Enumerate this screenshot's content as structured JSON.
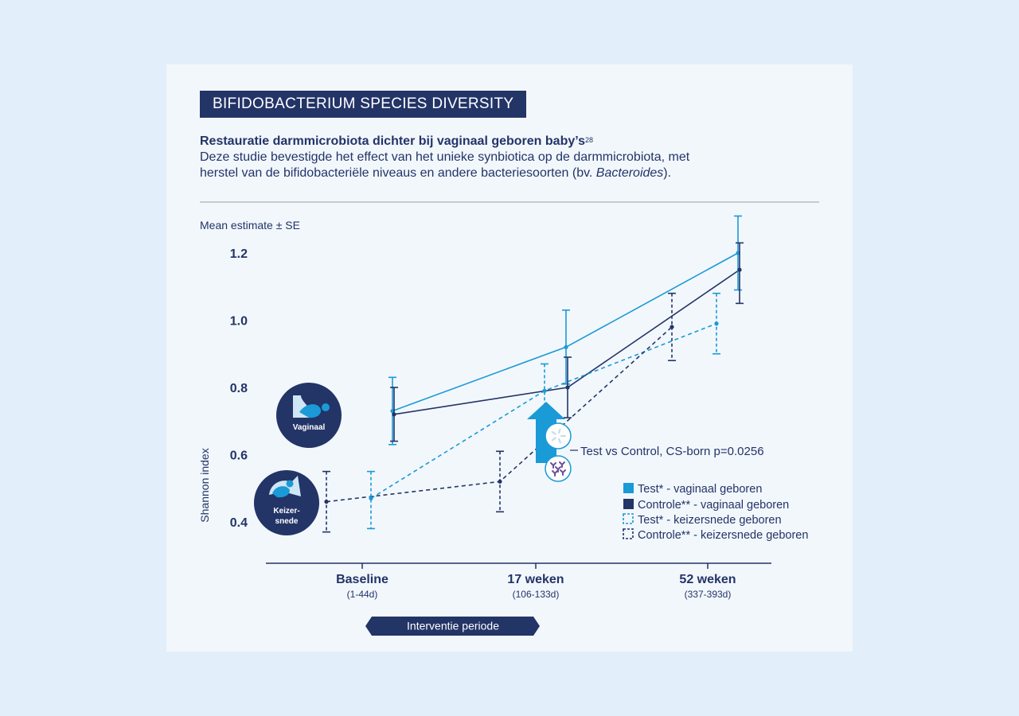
{
  "header": {
    "title": "BIFIDOBACTERIUM SPECIES DIVERSITY",
    "subtitle_bold": "Restauratie darmmicrobiota dichter bij vaginaal geboren baby’s",
    "subtitle_ref": "28",
    "body_line1": "Deze studie bevestigde het effect van het unieke synbiotica op de darmmicrobiota, met",
    "body_line2_pre": "herstel van de bifidobacteriële niveaus en andere bacteriesoorten (bv. ",
    "body_line2_italic": "Bacteroides",
    "body_line2_post": ")."
  },
  "chart_data": {
    "type": "line",
    "title": "",
    "y_top_label": "Mean estimate ± SE",
    "ylabel": "Shannon index",
    "ylim": [
      0.28,
      1.32
    ],
    "yticks": [
      {
        "value": 0.4,
        "label": "0.4"
      },
      {
        "value": 0.6,
        "label": "0.6"
      },
      {
        "value": 0.8,
        "label": "0.8"
      },
      {
        "value": 1.0,
        "label": "1.0"
      },
      {
        "value": 1.2,
        "label": "1.2"
      }
    ],
    "categories": [
      {
        "label": "Baseline",
        "sub": "(1-44d)"
      },
      {
        "label": "17 weken",
        "sub": "(106-133d)"
      },
      {
        "label": "52 weken",
        "sub": "(337-393d)"
      }
    ],
    "series": [
      {
        "name": "Test* - vaginaal geboren",
        "color": "#1a9ad6",
        "dashed": false,
        "values": [
          0.73,
          0.92,
          1.2
        ],
        "lower": [
          0.63,
          0.81,
          1.09
        ],
        "upper": [
          0.83,
          1.03,
          1.31
        ]
      },
      {
        "name": "Controle** - vaginaal geboren",
        "color": "#233467",
        "dashed": false,
        "values": [
          0.72,
          0.8,
          1.15
        ],
        "lower": [
          0.64,
          0.71,
          1.05
        ],
        "upper": [
          0.8,
          0.89,
          1.23
        ]
      },
      {
        "name": "Test* - keizersnede geboren",
        "color": "#1a9ad6",
        "dashed": true,
        "values": [
          0.47,
          0.79,
          0.99
        ],
        "lower": [
          0.38,
          0.71,
          0.9
        ],
        "upper": [
          0.55,
          0.87,
          1.08
        ]
      },
      {
        "name": "Controle** - keizersnede geboren",
        "color": "#233467",
        "dashed": true,
        "values": [
          0.46,
          0.52,
          0.98
        ],
        "lower": [
          0.37,
          0.43,
          0.88
        ],
        "upper": [
          0.55,
          0.61,
          1.08
        ]
      }
    ],
    "annotation": "Test vs Control, CS-born p=0.0256",
    "legend_position": "bottom-right",
    "group_labels": {
      "vaginal": "Vaginaal",
      "cs_line1": "Keizer-",
      "cs_line2": "snede"
    },
    "intervention_label": "Interventie periode"
  },
  "colors": {
    "navy": "#233467",
    "blue": "#1a9ad6",
    "card": "#f2f7fc",
    "background": "#e2eef9"
  }
}
